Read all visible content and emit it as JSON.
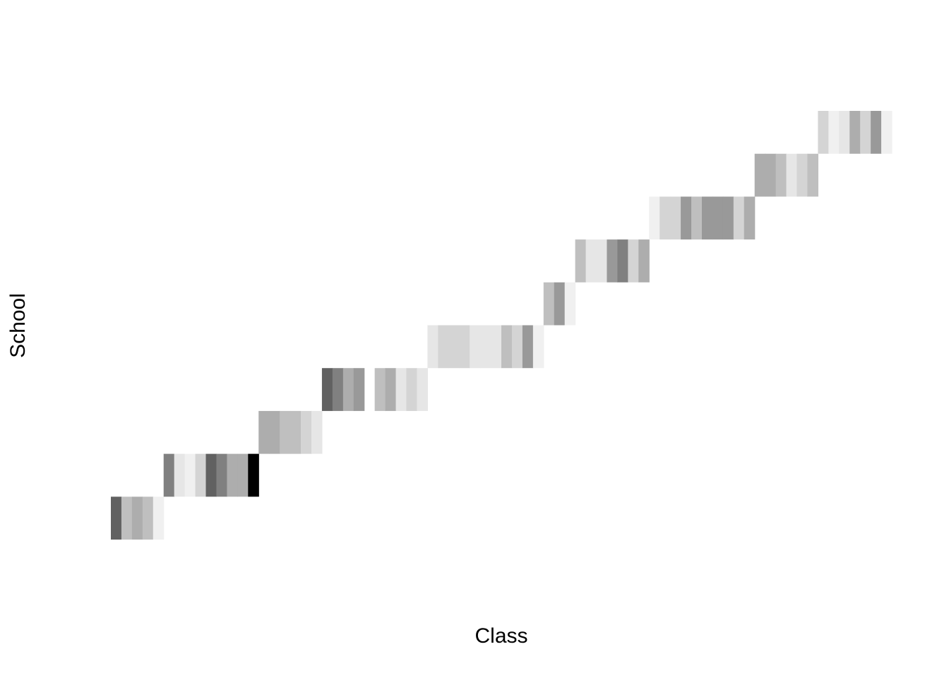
{
  "chart_data": {
    "type": "heatmap",
    "xlabel": "Class",
    "ylabel": "School",
    "grid": false,
    "legend": "none",
    "n_classes": 74,
    "color_scale": {
      "min_color": "#ffffff",
      "max_color": "#000000"
    },
    "rows": [
      {
        "school": 1,
        "start_class": 0,
        "values": [
          0.62,
          0.25,
          0.32,
          0.25,
          0.06
        ]
      },
      {
        "school": 2,
        "start_class": 5,
        "values": [
          0.5,
          0.1,
          0.06,
          0.17,
          0.62,
          0.5,
          0.32,
          0.32,
          1.0
        ]
      },
      {
        "school": 3,
        "start_class": 14,
        "values": [
          0.32,
          0.32,
          0.25,
          0.25,
          0.17,
          0.1
        ]
      },
      {
        "school": 4,
        "start_class": 20,
        "values": [
          0.62,
          0.5,
          0.32,
          0.4,
          null,
          0.25,
          0.32,
          0.1,
          0.17,
          0.1
        ]
      },
      {
        "school": 5,
        "start_class": 30,
        "values": [
          0.1,
          0.17,
          0.17,
          0.17,
          0.1,
          0.1,
          0.1,
          0.25,
          0.17,
          0.4,
          0.06
        ]
      },
      {
        "school": 6,
        "start_class": 41,
        "values": [
          0.25,
          0.4,
          0.06
        ]
      },
      {
        "school": 7,
        "start_class": 44,
        "values": [
          0.25,
          0.1,
          0.1,
          0.4,
          0.5,
          0.17,
          0.32
        ]
      },
      {
        "school": 8,
        "start_class": 51,
        "values": [
          0.06,
          0.17,
          0.17,
          0.4,
          0.25,
          0.4,
          0.4,
          0.4,
          0.17,
          0.32
        ]
      },
      {
        "school": 9,
        "start_class": 61,
        "values": [
          0.32,
          0.32,
          0.25,
          0.1,
          0.17,
          0.25
        ]
      },
      {
        "school": 10,
        "start_class": 67,
        "values": [
          0.17,
          0.06,
          0.1,
          0.32,
          0.17,
          0.4,
          0.06
        ]
      }
    ]
  }
}
